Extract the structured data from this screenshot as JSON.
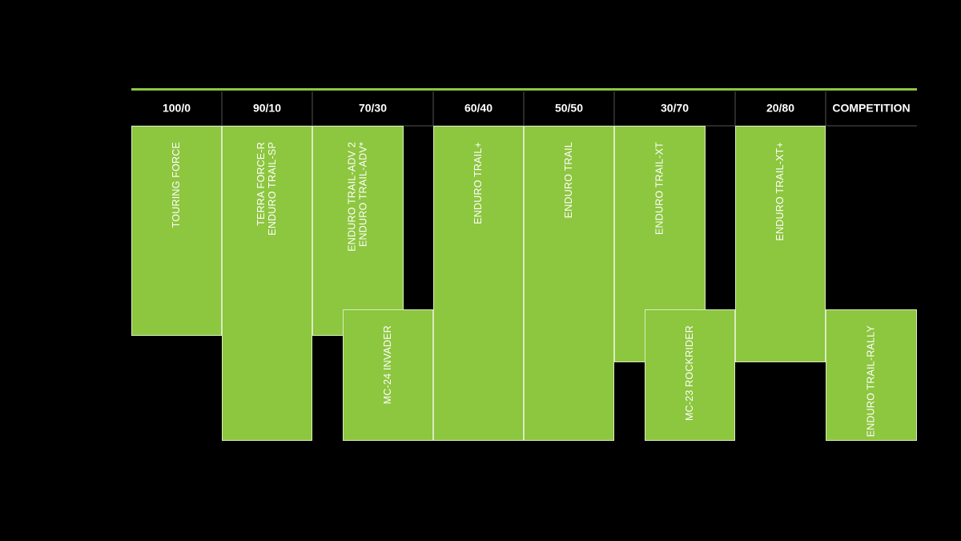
{
  "header": {
    "columns": [
      "100/0",
      "90/10",
      "70/30",
      "60/40",
      "50/50",
      "30/70",
      "20/80",
      "COMPETITION"
    ]
  },
  "boxes": [
    {
      "lines": [
        "TOURING FORCE"
      ]
    },
    {
      "lines": [
        "TERRA FORCE-R",
        "ENDURO TRAIL-SP"
      ]
    },
    {
      "lines": [
        "ENDURO TRAIL-ADV 2",
        "ENDURO TRAIL-ADV*"
      ]
    },
    {
      "lines": [
        "MC-24 INVADER"
      ]
    },
    {
      "lines": [
        "ENDURO TRAIL+"
      ]
    },
    {
      "lines": [
        "ENDURO TRAIL"
      ]
    },
    {
      "lines": [
        "ENDURO TRAIL-XT"
      ]
    },
    {
      "lines": [
        "MC-23 ROCKRIDER"
      ]
    },
    {
      "lines": [
        "ENDURO TRAIL-XT+"
      ]
    },
    {
      "lines": [
        "ENDURO TRAIL-RALLY"
      ]
    }
  ]
}
